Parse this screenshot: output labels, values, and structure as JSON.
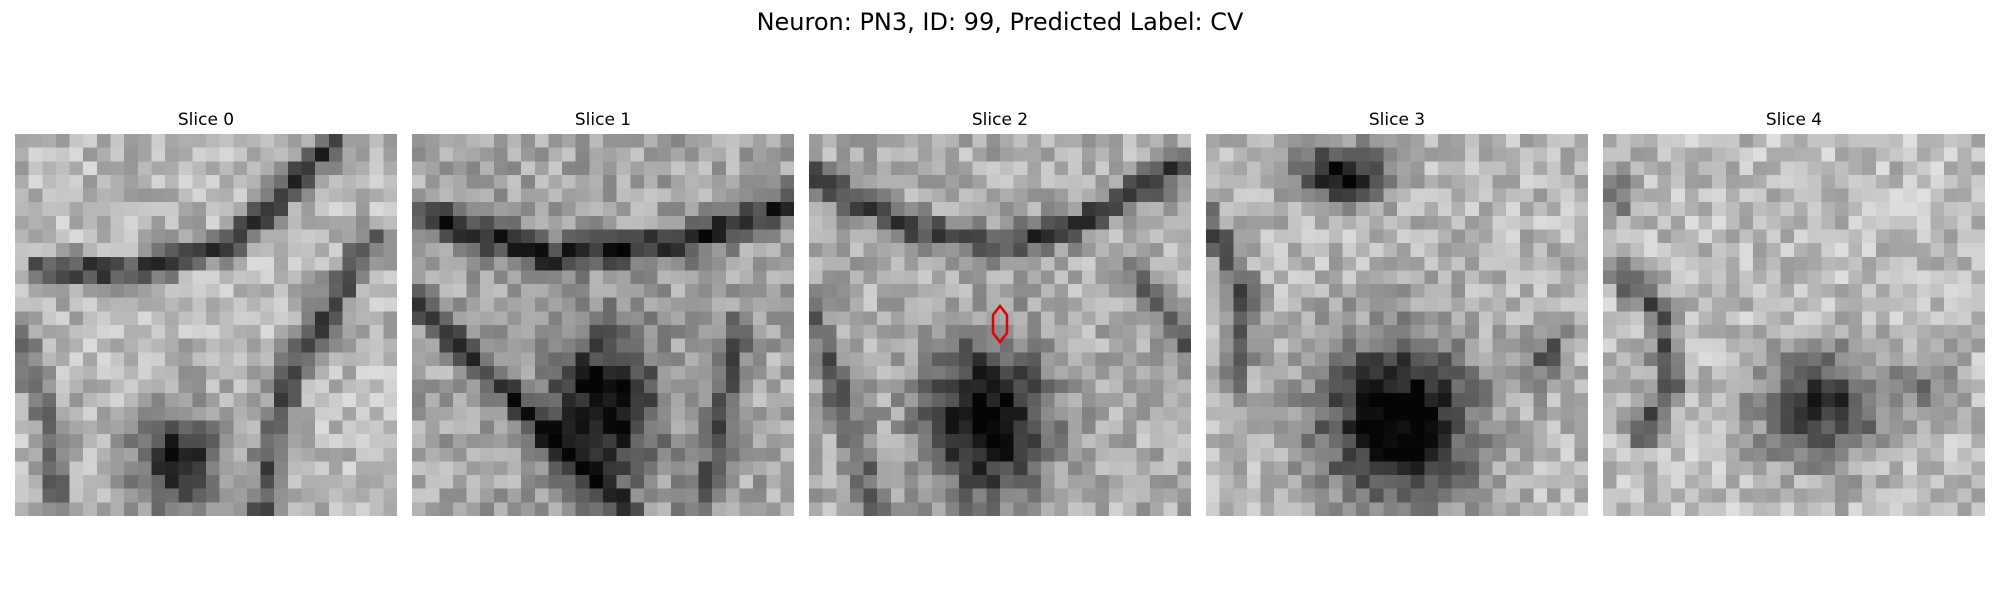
{
  "figure": {
    "title": "Neuron: PN3, ID: 99, Predicted Label: CV"
  },
  "colors": {
    "marker": "#e00000",
    "background": "#ffffff"
  },
  "panels": [
    {
      "title": "Slice 0"
    },
    {
      "title": "Slice 1"
    },
    {
      "title": "Slice 2"
    },
    {
      "title": "Slice 3"
    },
    {
      "title": "Slice 4"
    }
  ]
}
